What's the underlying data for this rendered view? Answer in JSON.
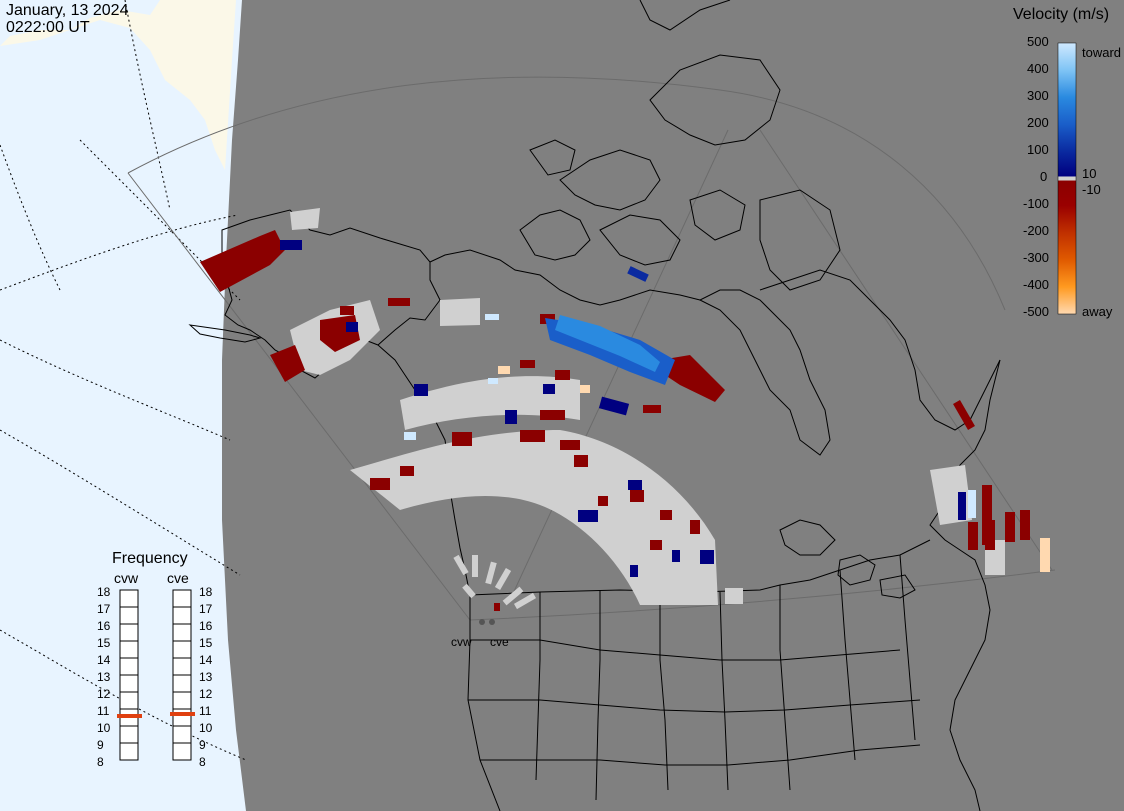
{
  "header": {
    "date": "January, 13 2024",
    "time": "0222:00 UT"
  },
  "colorbar": {
    "title": "Velocity (m/s)",
    "ticks": [
      "500",
      "400",
      "300",
      "200",
      "100",
      "0",
      "-100",
      "-200",
      "-300",
      "-400",
      "-500"
    ],
    "toward_label": "toward",
    "away_label": "away",
    "threshold_pos": "10",
    "threshold_neg": "-10",
    "stops": [
      {
        "v": 500,
        "color": "#cfe9ff"
      },
      {
        "v": 400,
        "color": "#7fc4f5"
      },
      {
        "v": 300,
        "color": "#2a8ae0"
      },
      {
        "v": 200,
        "color": "#1a5ec9"
      },
      {
        "v": 100,
        "color": "#0a2aa0"
      },
      {
        "v": 10,
        "color": "#000080"
      },
      {
        "v": 0,
        "color": "#d0d0d0"
      },
      {
        "v": -10,
        "color": "#8b0000"
      },
      {
        "v": -100,
        "color": "#9a0000"
      },
      {
        "v": -200,
        "color": "#c03000"
      },
      {
        "v": -300,
        "color": "#e05a00"
      },
      {
        "v": -400,
        "color": "#ff9a20"
      },
      {
        "v": -500,
        "color": "#ffd9b0"
      }
    ]
  },
  "frequency": {
    "title": "Frequency",
    "scale": [
      "18",
      "17",
      "16",
      "15",
      "14",
      "13",
      "12",
      "11",
      "10",
      "9",
      "8"
    ],
    "radars": [
      {
        "name": "cvw",
        "value_mhz": 10.7
      },
      {
        "name": "cve",
        "value_mhz": 10.8
      }
    ],
    "marker_color": "#e04010"
  },
  "map_labels": {
    "radar_cvw": "cvw",
    "radar_cve": "cve"
  },
  "colors": {
    "ocean": "#e8f4ff",
    "land_night": "#808080",
    "land_day": "#fbf8e8",
    "ground_scatter": "#d0d0d0",
    "coast_lines": "#000000"
  }
}
